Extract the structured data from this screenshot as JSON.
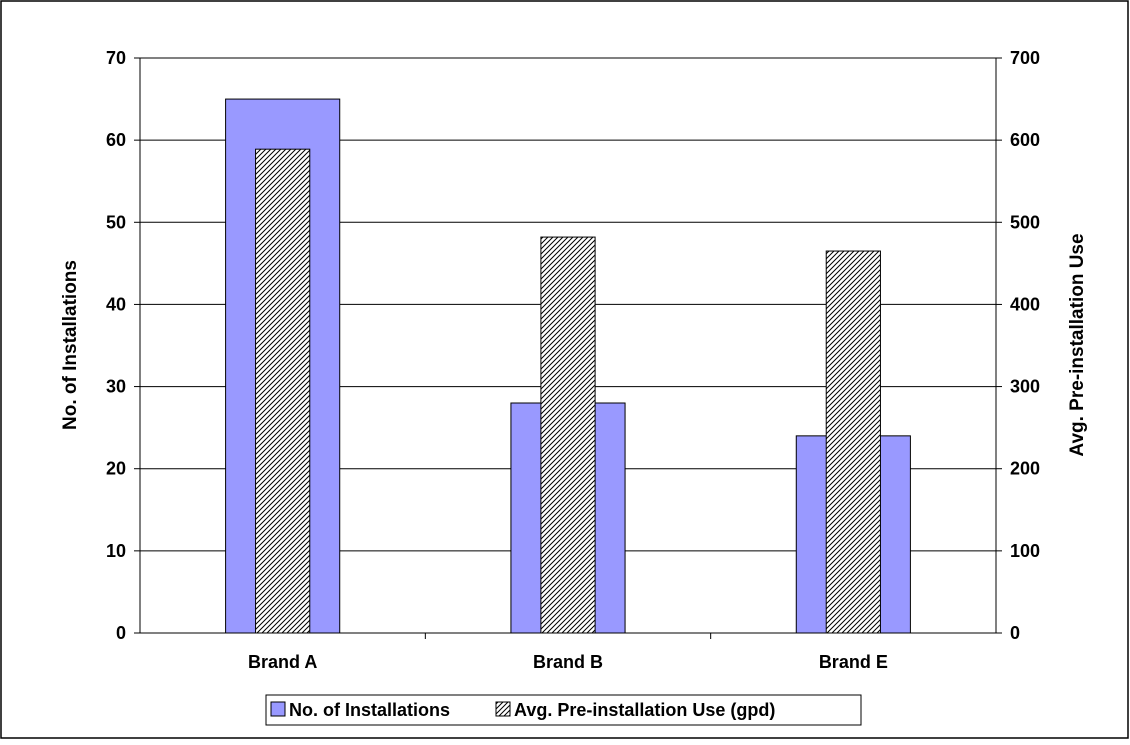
{
  "chart_data": {
    "type": "bar",
    "categories": [
      "Brand A",
      "Brand B",
      "Brand E"
    ],
    "series": [
      {
        "name": "No. of Installations",
        "values": [
          65,
          28,
          24
        ],
        "axis": "left",
        "color": "#9999ff",
        "fill": "solid"
      },
      {
        "name": "Avg. Pre-installation Use (gpd)",
        "values": [
          589,
          482,
          465
        ],
        "axis": "right",
        "color": "#000000",
        "fill": "diagonal-hatch"
      }
    ],
    "ylabel": "No. of Installations",
    "y2label": "Avg. Pre-installation Use",
    "ylim": [
      0,
      70
    ],
    "y2lim": [
      0,
      700
    ],
    "yticks": [
      "0",
      "10",
      "20",
      "30",
      "40",
      "50",
      "60",
      "70"
    ],
    "y2ticks": [
      "0",
      "100",
      "200",
      "300",
      "400",
      "500",
      "600",
      "700"
    ],
    "grid": true,
    "legend_position": "bottom-center"
  }
}
